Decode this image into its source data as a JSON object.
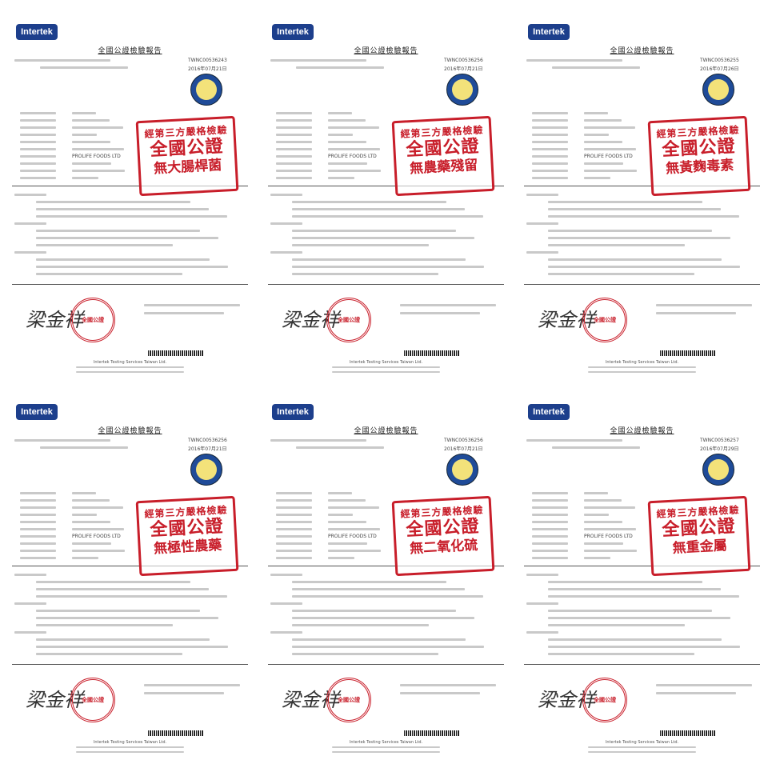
{
  "brand": "Intertek",
  "report_title": "全國公證檢驗報告",
  "stamp_header": "經第三方嚴格檢驗",
  "stamp_main": "全國公證",
  "seal_text": "全國公證",
  "signature": "梁金祥",
  "footer": "Intertek Testing Services Taiwan Ltd.",
  "colors": {
    "stamp": "#c81e2a",
    "logo": "#1d3f8c"
  },
  "documents": [
    {
      "stamp_claim": "無大腸桿菌",
      "report_no": "TWNC00536243",
      "manufacturer": "PROLIFE FOODS LTD",
      "date": "2016年07月21日"
    },
    {
      "stamp_claim": "無農藥殘留",
      "report_no": "TWNC00536256",
      "manufacturer": "PROLIFE FOODS LTD",
      "date": "2016年07月21日"
    },
    {
      "stamp_claim": "無黃麴毒素",
      "report_no": "TWNC00536255",
      "manufacturer": "PROLIFE FOODS LTD",
      "date": "2016年07月26日"
    },
    {
      "stamp_claim": "無極性農藥",
      "report_no": "TWNC00536256",
      "manufacturer": "PROLIFE FOODS LTD",
      "date": "2016年07月21日"
    },
    {
      "stamp_claim": "無二氧化硫",
      "report_no": "TWNC00536256",
      "manufacturer": "PROLIFE FOODS LTD",
      "date": "2016年07月21日"
    },
    {
      "stamp_claim": "無重金屬",
      "report_no": "TWNC00536257",
      "manufacturer": "PROLIFE FOODS LTD",
      "date": "2016年07月29日"
    }
  ]
}
